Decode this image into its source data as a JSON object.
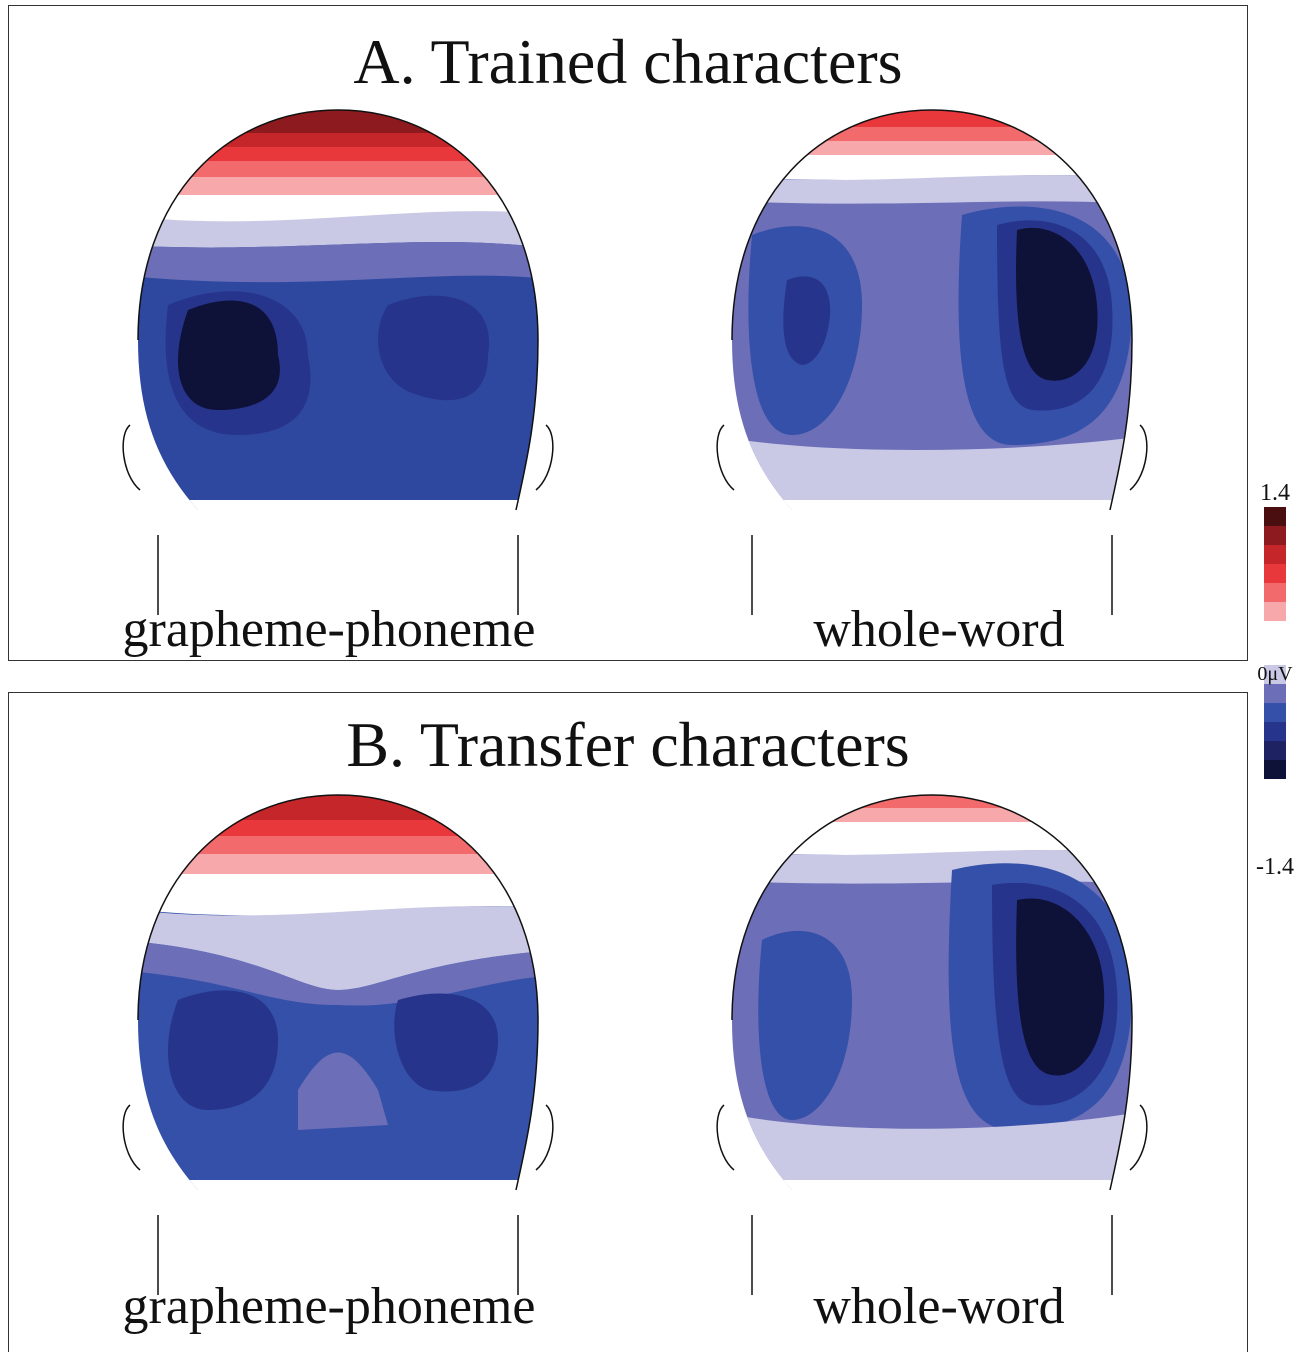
{
  "panels": [
    {
      "title": "A. Trained characters",
      "conditions": [
        "grapheme-phoneme",
        "whole-word"
      ]
    },
    {
      "title": "B. Transfer characters",
      "conditions": [
        "grapheme-phoneme",
        "whole-word"
      ]
    }
  ],
  "colorbar": {
    "max_label": "1.4",
    "zero_label": "0μV",
    "min_label": "-1.4",
    "positive_colors": [
      "#4a0e10",
      "#8c1a1e",
      "#c4262a",
      "#e8383c",
      "#f26a6c",
      "#f7a8aa"
    ],
    "negative_colors": [
      "#c9c9e6",
      "#6c6fb8",
      "#3550a8",
      "#27348c",
      "#1e2262",
      "#0f1238"
    ]
  }
}
